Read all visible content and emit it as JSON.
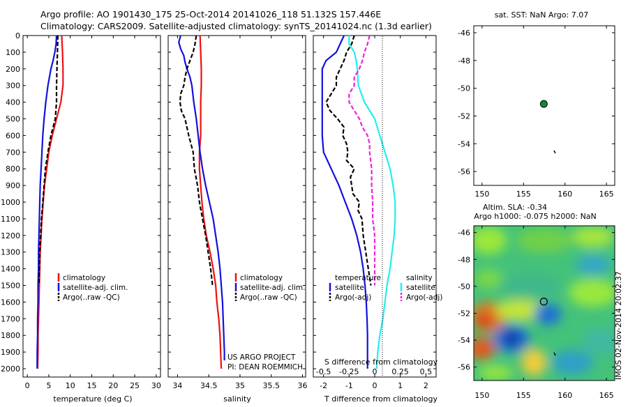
{
  "header": {
    "line1": "Argo profile: AO 1901430_175 25-Oct-2014 20141026_118 51.132S 157.446E",
    "line2": "Climatology: CARS2009. Satellite-adjusted climatology: synTS_20141024.nc (1.3d earlier)"
  },
  "colors": {
    "red": "#ee1111",
    "blue": "#1111dd",
    "black": "#000000",
    "cyan": "#22eeee",
    "magenta": "#ee22dd",
    "green": "#118833"
  },
  "depth_ticks": [
    "0",
    "100",
    "200",
    "300",
    "400",
    "500",
    "600",
    "700",
    "800",
    "900",
    "1000",
    "1100",
    "1200",
    "1300",
    "1400",
    "1500",
    "1600",
    "1700",
    "1800",
    "1900",
    "2000"
  ],
  "temp_panel": {
    "xlabel": "temperature (deg C)",
    "xticks": [
      "0",
      "5",
      "10",
      "15",
      "20",
      "25",
      "30"
    ],
    "legend": [
      "climatology",
      "satellite-adj. clim.",
      "Argo(..raw -QC)"
    ]
  },
  "sal_panel": {
    "xlabel": "salinity",
    "xticks": [
      "34",
      "34.5",
      "35",
      "35.5",
      "36"
    ],
    "legend": [
      "climatology",
      "satellite-adj. clim.",
      "Argo(..raw -QC)"
    ],
    "note1": "US ARGO PROJECT",
    "note2": "PI: DEAN ROEMMICH"
  },
  "diff_panel": {
    "xlabel": "T difference from climatology",
    "top_label": "S difference from climatology",
    "xticks_t": [
      "-2",
      "-1",
      "0",
      "1",
      "2"
    ],
    "xticks_s": [
      "-0.5",
      "-0.25",
      "0",
      "0.25",
      "0.5"
    ],
    "legend_t_title": "temperature",
    "legend_t": [
      "satellite",
      "Argo(-adj)"
    ],
    "legend_s_title": "salinity",
    "legend_s": [
      "satellite",
      "Argo(-adj)"
    ]
  },
  "sst_map": {
    "title": "sat. SST: NaN Argo: 7.07",
    "yticks": [
      "-46",
      "-48",
      "-50",
      "-52",
      "-54",
      "-56"
    ],
    "xticks": [
      "150",
      "155",
      "160",
      "165"
    ]
  },
  "sla_map": {
    "title1": "Altim. SLA: -0.34",
    "title2": "Argo h1000: -0.075 h2000: NaN",
    "yticks": [
      "-46",
      "-48",
      "-50",
      "-52",
      "-54",
      "-56"
    ],
    "xticks": [
      "150",
      "155",
      "160",
      "165"
    ],
    "side_label": "IMOS 02-Nov-2014 20:02:37"
  },
  "chart_data": [
    {
      "type": "line",
      "xlabel": "temperature (deg C)",
      "ylim": [
        2050,
        0
      ],
      "xlim": [
        -1,
        31
      ],
      "series": [
        {
          "name": "climatology",
          "depth": [
            0,
            100,
            200,
            300,
            400,
            500,
            600,
            700,
            800,
            900,
            1000,
            1100,
            1200,
            1300,
            1400,
            1500,
            1600,
            1700,
            1800,
            1900,
            2000
          ],
          "values": [
            8.0,
            8.2,
            8.3,
            8.3,
            7.8,
            6.8,
            5.8,
            5.0,
            4.5,
            4.0,
            3.7,
            3.4,
            3.2,
            3.0,
            2.9,
            2.8,
            2.7,
            2.6,
            2.5,
            2.5,
            2.4
          ]
        },
        {
          "name": "satellite-adj. clim.",
          "depth": [
            0,
            50,
            100,
            150,
            200,
            300,
            400,
            500,
            600,
            700,
            800,
            900,
            1000,
            1100,
            1200,
            1300,
            1400,
            1500,
            1600,
            1700,
            1800,
            1900,
            2000
          ],
          "values": [
            6.8,
            6.7,
            6.4,
            6.0,
            5.5,
            4.8,
            4.3,
            3.9,
            3.6,
            3.4,
            3.2,
            3.0,
            2.9,
            2.8,
            2.7,
            2.6,
            2.6,
            2.5,
            2.5,
            2.4,
            2.4,
            2.3,
            2.3
          ]
        },
        {
          "name": "Argo(..raw -QC)",
          "depth": [
            0,
            100,
            200,
            300,
            400,
            500,
            600,
            700,
            800,
            900,
            1000,
            1100,
            1200,
            1300,
            1400,
            1500
          ],
          "values": [
            7.1,
            7.0,
            6.9,
            6.8,
            6.8,
            6.5,
            5.5,
            4.8,
            4.2,
            3.9,
            3.6,
            3.3,
            3.1,
            2.9,
            2.8,
            2.7
          ]
        }
      ]
    },
    {
      "type": "line",
      "xlabel": "salinity",
      "ylim": [
        2050,
        0
      ],
      "xlim": [
        33.85,
        36.05
      ],
      "series": [
        {
          "name": "climatology",
          "depth": [
            0,
            100,
            200,
            300,
            400,
            500,
            600,
            700,
            800,
            900,
            1000,
            1100,
            1200,
            1300,
            1400,
            1500,
            1600,
            1700,
            1800,
            1900,
            2000
          ],
          "values": [
            34.36,
            34.37,
            34.38,
            34.38,
            34.37,
            34.37,
            34.37,
            34.35,
            34.35,
            34.37,
            34.39,
            34.42,
            34.46,
            34.52,
            34.57,
            34.61,
            34.63,
            34.66,
            34.68,
            34.69,
            34.7
          ]
        },
        {
          "name": "satellite-adj. clim.",
          "depth": [
            0,
            40,
            80,
            120,
            160,
            200,
            250,
            300,
            400,
            500,
            600,
            700,
            800,
            900,
            1000,
            1100,
            1200,
            1300,
            1400,
            1500,
            1600,
            1700,
            1800,
            1900,
            1950
          ],
          "values": [
            34.05,
            34.02,
            34.05,
            34.1,
            34.12,
            34.15,
            34.2,
            34.23,
            34.26,
            34.3,
            34.33,
            34.36,
            34.4,
            34.45,
            34.51,
            34.57,
            34.61,
            34.65,
            34.68,
            34.7,
            34.72,
            34.73,
            34.74,
            34.75,
            34.75
          ]
        },
        {
          "name": "Argo(..raw -QC)",
          "depth": [
            0,
            50,
            100,
            150,
            200,
            250,
            300,
            350,
            400,
            450,
            500,
            600,
            700,
            800,
            900,
            1000,
            1100,
            1200,
            1300,
            1400,
            1500
          ],
          "values": [
            34.3,
            34.28,
            34.25,
            34.2,
            34.15,
            34.12,
            34.1,
            34.05,
            34.04,
            34.06,
            34.12,
            34.18,
            34.25,
            34.27,
            34.32,
            34.35,
            34.4,
            34.45,
            34.49,
            34.53,
            34.56
          ]
        }
      ]
    },
    {
      "type": "line",
      "xlabel": "T difference from climatology",
      "ylim": [
        2050,
        0
      ],
      "xlim": [
        -2.4,
        2.4
      ],
      "series": [
        {
          "name": "temperature satellite",
          "depth": [
            0,
            100,
            150,
            200,
            300,
            400,
            500,
            600,
            700,
            800,
            900,
            1000,
            1100,
            1200,
            1300,
            1400,
            1500,
            1600,
            1700,
            1800,
            1900,
            2000
          ],
          "values": [
            -1.2,
            -1.5,
            -1.9,
            -2.05,
            -2.05,
            -2.05,
            -2.05,
            -2.05,
            -2.0,
            -1.7,
            -1.4,
            -1.15,
            -0.9,
            -0.7,
            -0.55,
            -0.45,
            -0.38,
            -0.33,
            -0.3,
            -0.28,
            -0.28,
            -0.28
          ]
        },
        {
          "name": "temperature Argo(-adj)",
          "depth": [
            0,
            50,
            100,
            150,
            200,
            250,
            300,
            350,
            400,
            450,
            500,
            550,
            600,
            650,
            700,
            750,
            800,
            850,
            900,
            950,
            1000,
            1050,
            1100,
            1200,
            1300,
            1400,
            1500
          ],
          "values": [
            -0.8,
            -0.9,
            -1.1,
            -1.2,
            -1.35,
            -1.5,
            -1.5,
            -1.7,
            -1.9,
            -1.75,
            -1.45,
            -1.2,
            -1.25,
            -1.1,
            -1.05,
            -1.1,
            -0.8,
            -0.95,
            -0.9,
            -0.85,
            -0.6,
            -0.65,
            -0.5,
            -0.45,
            -0.35,
            -0.25,
            -0.15
          ]
        },
        {
          "name": "salinity satellite",
          "depth": [
            0,
            50,
            100,
            150,
            200,
            300,
            400,
            500,
            600,
            700,
            800,
            900,
            1000,
            1100,
            1200,
            1300,
            1400,
            1500,
            1600,
            1700,
            1800,
            1900,
            2000
          ],
          "values": [
            -0.25,
            -0.25,
            -0.2,
            -0.18,
            -0.17,
            -0.16,
            -0.1,
            0.0,
            0.05,
            0.1,
            0.15,
            0.18,
            0.2,
            0.2,
            0.19,
            0.17,
            0.15,
            0.12,
            0.1,
            0.08,
            0.05,
            0.03,
            0.02
          ]
        },
        {
          "name": "salinity Argo(-adj)",
          "depth": [
            0,
            50,
            100,
            150,
            200,
            250,
            300,
            350,
            400,
            450,
            500,
            550,
            600,
            650,
            700,
            800,
            900,
            1000,
            1100,
            1200,
            1300,
            1400,
            1500
          ],
          "values": [
            -0.05,
            -0.07,
            -0.1,
            -0.12,
            -0.15,
            -0.2,
            -0.2,
            -0.25,
            -0.25,
            -0.2,
            -0.15,
            -0.12,
            -0.07,
            -0.05,
            -0.05,
            -0.03,
            -0.03,
            -0.02,
            -0.02,
            0.0,
            0.0,
            0.0,
            0.0
          ]
        }
      ]
    },
    {
      "type": "scatter",
      "title": "sat. SST: NaN Argo: 7.07",
      "xlim": [
        149,
        166
      ],
      "ylim": [
        -57,
        -45.5
      ],
      "points": [
        {
          "lon": 157.446,
          "lat": -51.132
        }
      ]
    },
    {
      "type": "heatmap",
      "title": "Altim. SLA: -0.34",
      "xlim": [
        149,
        166
      ],
      "ylim": [
        -57,
        -45.5
      ],
      "points": [
        {
          "lon": 157.446,
          "lat": -51.132
        }
      ]
    }
  ]
}
